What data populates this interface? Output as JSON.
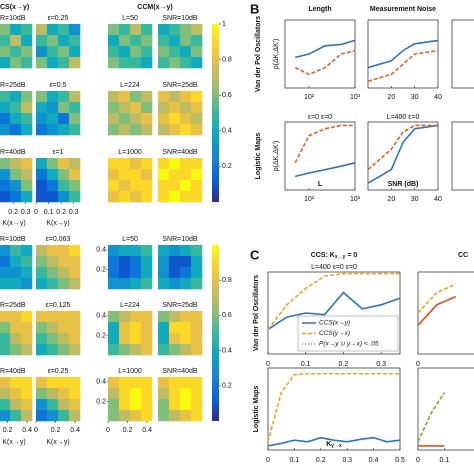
{
  "panel_a": {
    "colormap": [
      "#352a87",
      "#0363e1",
      "#1485d4",
      "#06a7c6",
      "#38b99e",
      "#92bf73",
      "#d9ba56",
      "#fcce2e",
      "#f9fb0e"
    ],
    "blocks": [
      {
        "headers": [
          "CS(x→y)",
          "CCM(x→y)"
        ],
        "xlim": [
          0,
          0.35
        ],
        "xticks": [
          0,
          0.1,
          0.2,
          0.3
        ],
        "xlabel": "K(x→y)",
        "clim": [
          0,
          1
        ],
        "cticks": [
          0.2,
          0.4,
          0.6,
          0.8,
          1
        ],
        "rows": [
          {
            "labels": [
              "R=10dB",
              "ε=0.25",
              "L=50",
              "SNR=10dB"
            ],
            "maps": [
              [
                0.5,
                0.6,
                0.4,
                0.5,
                0.6,
                0.5,
                0.7,
                0.4,
                0.4,
                0.6,
                0.5,
                0.6,
                0.5,
                0.4,
                0.6,
                0.5
              ],
              [
                0.7,
                0.4,
                0.5,
                0.3,
                0.5,
                0.6,
                0.4,
                0.5,
                0.3,
                0.5,
                0.6,
                0.4,
                0.6,
                0.4,
                0.5,
                0.7
              ],
              [
                0.6,
                0.5,
                0.7,
                0.5,
                0.4,
                0.6,
                0.5,
                0.6,
                0.5,
                0.4,
                0.6,
                0.5,
                0.6,
                0.5,
                0.5,
                0.4
              ],
              [
                0.4,
                0.5,
                0.6,
                0.7,
                0.5,
                0.4,
                0.6,
                0.5,
                0.6,
                0.5,
                0.4,
                0.6,
                0.5,
                0.6,
                0.5,
                0.4
              ]
            ]
          },
          {
            "labels": [
              "R=25dB",
              "ε=0.5",
              "L=224",
              "SNR=25dB"
            ],
            "maps": [
              [
                0.3,
                0.5,
                0.4,
                0.6,
                0.2,
                0.4,
                0.5,
                0.7,
                0.3,
                0.2,
                0.4,
                0.5,
                0.1,
                0.3,
                0.2,
                0.4
              ],
              [
                0.6,
                0.4,
                0.5,
                0.7,
                0.4,
                0.3,
                0.6,
                0.5,
                0.3,
                0.4,
                0.2,
                0.6,
                0.2,
                0.3,
                0.4,
                0.5
              ],
              [
                0.7,
                0.8,
                0.6,
                0.7,
                0.6,
                0.7,
                0.8,
                0.6,
                0.7,
                0.6,
                0.7,
                0.8,
                0.6,
                0.7,
                0.6,
                0.7
              ],
              [
                0.8,
                0.7,
                0.8,
                0.9,
                0.7,
                0.8,
                0.7,
                0.8,
                0.8,
                0.9,
                0.8,
                0.7,
                0.7,
                0.8,
                0.9,
                0.8
              ]
            ]
          },
          {
            "labels": [
              "R=40dB",
              "ε=1",
              "L=1000",
              "SNR=40dB"
            ],
            "maps": [
              [
                0.3,
                0.6,
                0.7,
                0.8,
                0.2,
                0.3,
                0.6,
                0.7,
                0.1,
                0.2,
                0.3,
                0.6,
                0.1,
                0.1,
                0.2,
                0.4
              ],
              [
                0.4,
                0.6,
                0.8,
                0.7,
                0.2,
                0.4,
                0.6,
                0.8,
                0.1,
                0.2,
                0.5,
                0.6,
                0.1,
                0.1,
                0.3,
                0.5
              ],
              [
                0.9,
                0.9,
                0.8,
                0.9,
                0.8,
                0.9,
                0.9,
                0.8,
                0.9,
                0.8,
                0.9,
                0.9,
                0.8,
                0.9,
                0.8,
                0.9
              ],
              [
                0.9,
                1,
                0.9,
                0.9,
                1,
                0.9,
                0.9,
                1,
                0.9,
                0.9,
                1,
                0.9,
                0.9,
                1,
                0.9,
                0.9
              ]
            ]
          }
        ]
      },
      {
        "xlim": [
          0,
          0.45
        ],
        "xticks": [
          0,
          0.2,
          0.4
        ],
        "ylim": [
          0,
          0.45
        ],
        "yticks": [
          0.4,
          0.2
        ],
        "xlabel": "K(x→y)",
        "clim": [
          0,
          1
        ],
        "cticks": [
          0.2,
          0.4,
          0.6,
          0.8
        ],
        "rows": [
          {
            "labels": [
              "R=10dB",
              "ε=0.063",
              "L=50",
              "SNR=10dB"
            ],
            "maps": [
              [
                0.4,
                0.3,
                0.5,
                0.4,
                0.3,
                0.2,
                0.4,
                0.5,
                0.4,
                0.3,
                0.3,
                0.4,
                0.5,
                0.4,
                0.4,
                0.3
              ],
              [
                0.7,
                0.8,
                0.8,
                0.9,
                0.6,
                0.7,
                0.8,
                0.8,
                0.5,
                0.6,
                0.7,
                0.8,
                0.4,
                0.5,
                0.6,
                0.7
              ],
              [
                0.3,
                0.4,
                0.4,
                0.5,
                0.2,
                0.1,
                0.2,
                0.4,
                0.2,
                0.1,
                0.2,
                0.4,
                0.3,
                0.3,
                0.4,
                0.5
              ],
              [
                0.4,
                0.3,
                0.4,
                0.5,
                0.3,
                0.1,
                0.1,
                0.4,
                0.3,
                0.1,
                0.2,
                0.4,
                0.4,
                0.3,
                0.4,
                0.5
              ]
            ]
          },
          {
            "labels": [
              "R=25dB",
              "ε=0.125",
              "L=224",
              "SNR=25dB"
            ],
            "maps": [
              [
                0.8,
                0.8,
                0.8,
                0.9,
                0.7,
                0.6,
                0.8,
                0.8,
                0.6,
                0.5,
                0.7,
                0.8,
                0.4,
                0.5,
                0.6,
                0.7
              ],
              [
                0.8,
                0.8,
                0.8,
                0.8,
                0.6,
                0.7,
                0.8,
                0.8,
                0.5,
                0.6,
                0.7,
                0.8,
                0.4,
                0.5,
                0.6,
                0.7
              ],
              [
                0.6,
                0.7,
                0.8,
                0.8,
                0.4,
                0.8,
                0.9,
                0.8,
                0.4,
                0.8,
                0.9,
                0.8,
                0.5,
                0.6,
                0.7,
                0.8
              ],
              [
                0.6,
                0.7,
                0.8,
                0.8,
                0.4,
                0.9,
                0.9,
                0.8,
                0.4,
                0.8,
                0.9,
                0.8,
                0.5,
                0.6,
                0.7,
                0.8
              ]
            ]
          },
          {
            "labels": [
              "R=40dB",
              "ε=0.25",
              "L=1000",
              "SNR=40dB"
            ],
            "maps": [
              [
                0.8,
                0.8,
                0.9,
                0.9,
                0.5,
                0.7,
                0.8,
                0.9,
                0.3,
                0.5,
                0.7,
                0.8,
                0.2,
                0.3,
                0.5,
                0.7
              ],
              [
                0.8,
                0.9,
                0.9,
                0.9,
                0.6,
                0.7,
                0.8,
                0.9,
                0.3,
                0.5,
                0.7,
                0.8,
                0.2,
                0.3,
                0.5,
                0.7
              ],
              [
                0.8,
                0.9,
                0.9,
                0.9,
                0.7,
                0.9,
                1,
                0.9,
                0.6,
                0.9,
                1,
                0.9,
                0.6,
                0.7,
                0.8,
                0.9
              ],
              [
                0.8,
                0.9,
                0.9,
                0.9,
                0.7,
                0.9,
                1,
                0.9,
                0.6,
                0.9,
                1,
                0.9,
                0.6,
                0.7,
                0.8,
                0.9
              ]
            ]
          }
        ]
      }
    ]
  },
  "panel_b": {
    "letter": "B",
    "columns": [
      "Length",
      "Measurement Noise"
    ],
    "rows": [
      "Van der Pol Oscillators",
      "Logistic Maps"
    ],
    "ylabel": "ρ(ΔK,ΔK')",
    "ylim": [
      0,
      1
    ],
    "charts": [
      [
        {
          "x": [
            50,
            100,
            224,
            500,
            1000
          ],
          "xscale": "log",
          "xlim": [
            30,
            1000
          ],
          "xticks": [
            {
              "value": 100,
              "label": "10²"
            },
            {
              "value": 1000,
              "label": "10³"
            }
          ],
          "series": [
            {
              "color": "#2f74b5",
              "dash": false,
              "values": [
                0.45,
                0.5,
                0.62,
                0.64,
                0.7
              ]
            },
            {
              "color": "#e0602a",
              "dash": true,
              "values": [
                0.3,
                0.2,
                0.3,
                0.5,
                0.55
              ]
            }
          ]
        },
        {
          "x": [
            10,
            20,
            25,
            30,
            40
          ],
          "xlim": [
            10,
            40
          ],
          "xticks": [
            20,
            30,
            40
          ],
          "series": [
            {
              "color": "#2f74b5",
              "dash": false,
              "values": [
                0.3,
                0.4,
                0.55,
                0.65,
                0.7
              ]
            },
            {
              "color": "#e0602a",
              "dash": true,
              "values": [
                0.1,
                0.2,
                0.35,
                0.5,
                0.55
              ]
            }
          ]
        }
      ],
      [
        {
          "annotation": "ε=0 ε=0",
          "xlabel": "L",
          "x": [
            50,
            100,
            224,
            500,
            1000
          ],
          "xscale": "log",
          "xlim": [
            30,
            1000
          ],
          "xticks": [
            {
              "value": 100,
              "label": "10²"
            },
            {
              "value": 1000,
              "label": "10³"
            }
          ],
          "series": [
            {
              "color": "#2f74b5",
              "dash": false,
              "values": [
                0.2,
                0.25,
                0.3,
                0.35,
                0.4
              ]
            },
            {
              "color": "#e0602a",
              "dash": true,
              "values": [
                0.4,
                0.8,
                0.9,
                0.95,
                0.95
              ]
            }
          ]
        },
        {
          "annotation": "L=400 ε=0",
          "xlabel": "SNR (dB)",
          "x": [
            10,
            20,
            25,
            30,
            40
          ],
          "xlim": [
            10,
            40
          ],
          "xticks": [
            20,
            30,
            40
          ],
          "series": [
            {
              "color": "#2f74b5",
              "dash": false,
              "values": [
                0.1,
                0.3,
                0.7,
                0.9,
                0.95
              ]
            },
            {
              "color": "#e0602a",
              "dash": true,
              "values": [
                0.3,
                0.6,
                0.85,
                0.95,
                0.95
              ]
            }
          ]
        }
      ]
    ]
  },
  "panel_c": {
    "letter": "C",
    "title_parts": [
      "CCS: K",
      "x→y",
      " = 0"
    ],
    "title2": "CC",
    "rows": [
      "Van der Pol Oscillators",
      "Logistic Maps"
    ],
    "ylim": [
      0,
      1
    ],
    "legend": [
      {
        "label": "CCS(x→y)",
        "color": "#2f74b5",
        "dash": "solid"
      },
      {
        "label": "CCS(y→x)",
        "color": "#e3a82b",
        "dash": "dashed"
      },
      {
        "label": "P(x→y ∪ y→x) < .05",
        "color": "#888888",
        "dash": "dotted"
      }
    ],
    "charts": [
      [
        {
          "annotation": "L=400 ε=0 ε=0",
          "x": [
            0,
            0.05,
            0.1,
            0.15,
            0.2,
            0.25,
            0.3,
            0.35
          ],
          "xlim": [
            0,
            0.35
          ],
          "xticks": [
            0,
            0.1,
            0.2,
            0.3
          ],
          "series": [
            {
              "color": "#2f74b5",
              "dash": false,
              "values": [
                0.3,
                0.45,
                0.5,
                0.48,
                0.75,
                0.55,
                0.6,
                0.68
              ]
            },
            {
              "color": "#e3a82b",
              "dash": true,
              "values": [
                0.3,
                0.6,
                0.8,
                0.95,
                0.98,
                0.98,
                0.98,
                0.98
              ]
            }
          ]
        },
        {
          "x": [
            0,
            0.05,
            0.1
          ],
          "xlim": [
            0,
            0.35
          ],
          "xticks": [
            0
          ],
          "series": [
            {
              "color": "#d95319",
              "dash": false,
              "values": [
                0.35,
                0.6,
                0.7
              ]
            },
            {
              "color": "#e3a82b",
              "dash": true,
              "values": [
                0.5,
                0.75,
                0.85
              ]
            }
          ]
        }
      ],
      [
        {
          "xlabel_parts": [
            "K",
            "y→x"
          ],
          "x": [
            0,
            0.05,
            0.1,
            0.15,
            0.2,
            0.25,
            0.3,
            0.35,
            0.4,
            0.45,
            0.5
          ],
          "xlim": [
            0,
            0.5
          ],
          "xticks": [
            0,
            0.1,
            0.2,
            0.3,
            0.4,
            0.5
          ],
          "series": [
            {
              "color": "#2f74b5",
              "dash": false,
              "values": [
                0.05,
                0.08,
                0.12,
                0.1,
                0.15,
                0.12,
                0.1,
                0.13,
                0.15,
                0.1,
                0.12
              ]
            },
            {
              "color": "#e3a82b",
              "dash": true,
              "values": [
                0.1,
                0.7,
                0.92,
                0.93,
                0.93,
                0.93,
                0.93,
                0.93,
                0.93,
                0.93,
                0.93
              ]
            }
          ]
        },
        {
          "x": [
            0,
            0.05,
            0.1
          ],
          "xlim": [
            0,
            0.5
          ],
          "xticks": [
            0,
            0.1
          ],
          "series": [
            {
              "color": "#d95319",
              "dash": false,
              "values": [
                0.05,
                0.05,
                0.05
              ]
            },
            {
              "color": "#77ac30",
              "dash": true,
              "values": [
                0.1,
                0.45,
                0.7
              ]
            }
          ]
        }
      ]
    ]
  }
}
